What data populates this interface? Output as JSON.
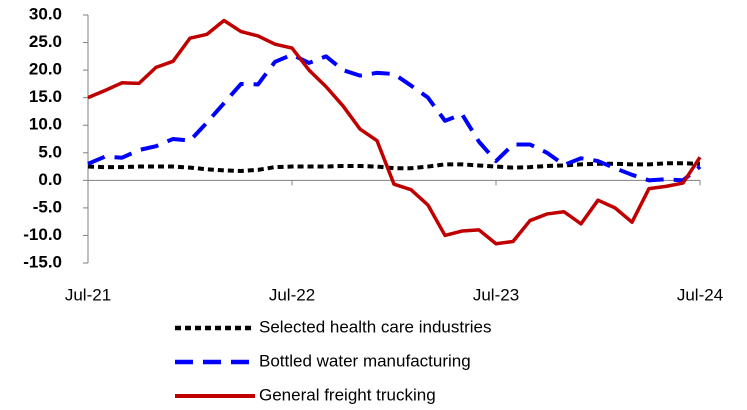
{
  "chart_data": {
    "type": "line",
    "categories": [
      "Jul-21",
      null,
      null,
      null,
      null,
      null,
      null,
      null,
      null,
      null,
      null,
      null,
      "Jul-22",
      null,
      null,
      null,
      null,
      null,
      null,
      null,
      null,
      null,
      null,
      null,
      "Jul-23",
      null,
      null,
      null,
      null,
      null,
      null,
      null,
      null,
      null,
      null,
      null,
      "Jul-24"
    ],
    "ylim": [
      -15,
      30
    ],
    "yticks": [
      {
        "value": 30,
        "label": "30.0"
      },
      {
        "value": 25,
        "label": "25.0"
      },
      {
        "value": 20,
        "label": "20.0"
      },
      {
        "value": 15,
        "label": "15.0"
      },
      {
        "value": 10,
        "label": "10.0"
      },
      {
        "value": 5,
        "label": "5.0"
      },
      {
        "value": 0,
        "label": "0.0"
      },
      {
        "value": -5,
        "label": "-5.0"
      },
      {
        "value": -10,
        "label": "-10.0"
      },
      {
        "value": -15,
        "label": "-15.0"
      }
    ],
    "grid": false,
    "series": [
      {
        "name": "Selected health care industries",
        "color": "#000000",
        "dash": "short",
        "values": [
          2.5,
          2.4,
          2.4,
          2.5,
          2.5,
          2.5,
          2.3,
          2.0,
          1.8,
          1.7,
          1.9,
          2.4,
          2.5,
          2.5,
          2.5,
          2.6,
          2.6,
          2.5,
          2.2,
          2.2,
          2.5,
          2.9,
          2.9,
          2.7,
          2.5,
          2.3,
          2.4,
          2.6,
          2.7,
          2.9,
          3.0,
          3.0,
          2.9,
          2.9,
          3.1,
          3.1,
          3.0
        ]
      },
      {
        "name": "Bottled water manufacturing",
        "color": "#0000ff",
        "dash": "long",
        "values": [
          3.0,
          4.3,
          4.1,
          5.5,
          6.2,
          7.5,
          7.2,
          10.5,
          14.0,
          17.5,
          17.4,
          21.5,
          22.8,
          21.3,
          22.5,
          20.0,
          19.0,
          19.5,
          19.3,
          17.2,
          15.0,
          10.8,
          12.0,
          7.0,
          3.5,
          6.5,
          6.5,
          5.0,
          2.8,
          4.0,
          3.5,
          2.2,
          1.0,
          0.0,
          0.2,
          0.0,
          2.5
        ]
      },
      {
        "name": "General freight trucking",
        "color": "#c00000",
        "dash": "solid",
        "values": [
          15.0,
          16.3,
          17.7,
          17.6,
          20.5,
          21.6,
          25.8,
          26.5,
          29.0,
          27.0,
          26.2,
          24.7,
          24.0,
          20.0,
          17.0,
          13.5,
          9.3,
          7.2,
          -0.7,
          -1.7,
          -4.5,
          -10.0,
          -9.2,
          -9.0,
          -11.5,
          -11.1,
          -7.3,
          -6.1,
          -5.7,
          -7.9,
          -3.6,
          -5.0,
          -7.6,
          -1.5,
          -1.1,
          -0.5,
          4.2
        ]
      }
    ]
  }
}
